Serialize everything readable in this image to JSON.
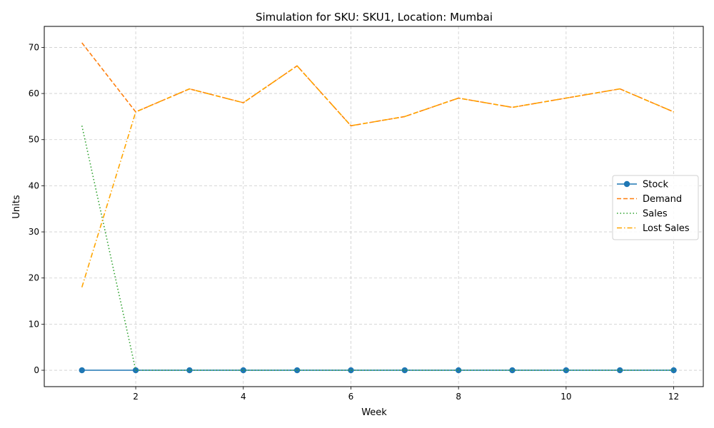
{
  "chart_data": {
    "type": "line",
    "title": "Simulation for SKU: SKU1, Location: Mumbai",
    "xlabel": "Week",
    "ylabel": "Units",
    "x": [
      1,
      2,
      3,
      4,
      5,
      6,
      7,
      8,
      9,
      10,
      11,
      12
    ],
    "xlim": [
      0.3,
      12.55
    ],
    "ylim": [
      -3.55,
      74.55
    ],
    "xticks": [
      2,
      4,
      6,
      8,
      10,
      12
    ],
    "yticks": [
      0,
      10,
      20,
      30,
      40,
      50,
      60,
      70
    ],
    "grid": true,
    "legend_position": "center-right",
    "series": [
      {
        "name": "Stock",
        "color": "#1f77b4",
        "dash": "solid",
        "marker": "circle",
        "values": [
          0,
          0,
          0,
          0,
          0,
          0,
          0,
          0,
          0,
          0,
          0,
          0
        ]
      },
      {
        "name": "Demand",
        "color": "#ff7f0e",
        "dash": "dashed",
        "marker": "none",
        "values": [
          71,
          56,
          61,
          58,
          66,
          53,
          55,
          59,
          57,
          59,
          61,
          56
        ]
      },
      {
        "name": "Sales",
        "color": "#2ca02c",
        "dash": "dotted",
        "marker": "none",
        "values": [
          53,
          0,
          0,
          0,
          0,
          0,
          0,
          0,
          0,
          0,
          0,
          0
        ]
      },
      {
        "name": "Lost Sales",
        "color": "#ffa500",
        "dash": "dashdot",
        "marker": "none",
        "values": [
          18,
          56,
          61,
          58,
          66,
          53,
          55,
          59,
          57,
          59,
          61,
          56
        ]
      }
    ]
  }
}
